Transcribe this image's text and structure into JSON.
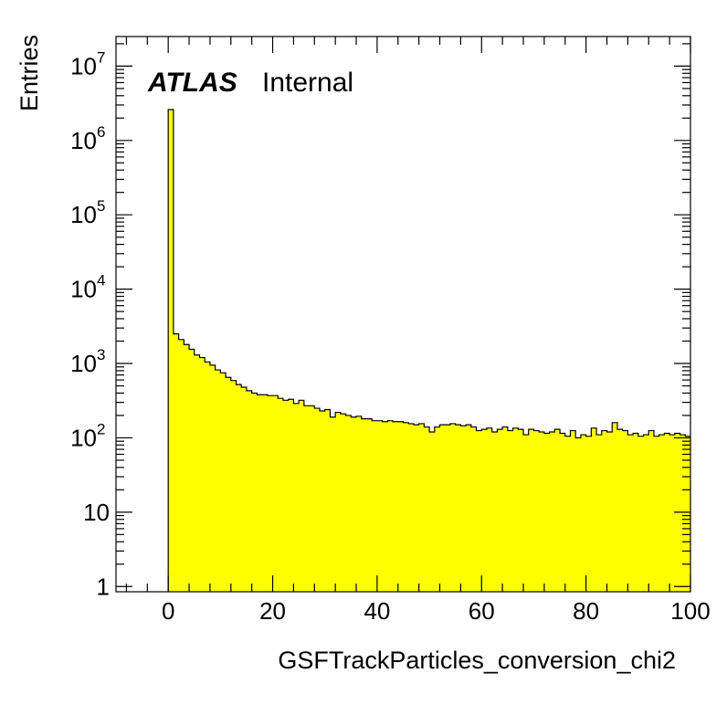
{
  "chart_data": {
    "type": "bar",
    "xlabel": "GSFTrackParticles_conversion_chi2",
    "ylabel": "Entries",
    "xlim": [
      -10,
      100
    ],
    "ylim": [
      0.85,
      25000000
    ],
    "yscale": "log",
    "grid": false,
    "fill_color": "#ffff00",
    "line_color": "#000000",
    "bin_width": 1,
    "x_ticks": [
      "0",
      "20",
      "40",
      "60",
      "80",
      "100"
    ],
    "x_tick_values": [
      0,
      20,
      40,
      60,
      80,
      100
    ],
    "y_ticks": [
      {
        "value": 1,
        "base": "1",
        "exp": ""
      },
      {
        "value": 10,
        "base": "10",
        "exp": ""
      },
      {
        "value": 100,
        "base": "10",
        "exp": "2"
      },
      {
        "value": 1000,
        "base": "10",
        "exp": "3"
      },
      {
        "value": 10000,
        "base": "10",
        "exp": "4"
      },
      {
        "value": 100000,
        "base": "10",
        "exp": "5"
      },
      {
        "value": 1000000,
        "base": "10",
        "exp": "6"
      },
      {
        "value": 10000000,
        "base": "10",
        "exp": "7"
      }
    ],
    "annotation": {
      "atlas": "ATLAS",
      "status": "Internal"
    },
    "x": [
      0,
      1,
      2,
      3,
      4,
      5,
      6,
      7,
      8,
      9,
      10,
      11,
      12,
      13,
      14,
      15,
      16,
      17,
      18,
      19,
      20,
      21,
      22,
      23,
      24,
      25,
      26,
      27,
      28,
      29,
      30,
      31,
      32,
      33,
      34,
      35,
      36,
      37,
      38,
      39,
      40,
      41,
      42,
      43,
      44,
      45,
      46,
      47,
      48,
      49,
      50,
      51,
      52,
      53,
      54,
      55,
      56,
      57,
      58,
      59,
      60,
      61,
      62,
      63,
      64,
      65,
      66,
      67,
      68,
      69,
      70,
      71,
      72,
      73,
      74,
      75,
      76,
      77,
      78,
      79,
      80,
      81,
      82,
      83,
      84,
      85,
      86,
      87,
      88,
      89,
      90,
      91,
      92,
      93,
      94,
      95,
      96,
      97,
      98,
      99
    ],
    "values": [
      2600000,
      2500,
      2100,
      1800,
      1550,
      1300,
      1200,
      1050,
      950,
      820,
      750,
      650,
      590,
      520,
      480,
      430,
      400,
      380,
      380,
      370,
      370,
      340,
      320,
      330,
      290,
      320,
      270,
      270,
      250,
      230,
      240,
      190,
      220,
      210,
      200,
      190,
      195,
      180,
      180,
      170,
      170,
      165,
      170,
      165,
      165,
      160,
      155,
      150,
      155,
      140,
      120,
      140,
      150,
      150,
      155,
      150,
      145,
      150,
      140,
      125,
      130,
      135,
      120,
      130,
      140,
      125,
      135,
      130,
      110,
      130,
      125,
      120,
      115,
      120,
      130,
      115,
      105,
      125,
      100,
      110,
      105,
      135,
      110,
      125,
      120,
      160,
      130,
      125,
      110,
      115,
      105,
      110,
      125,
      105,
      110,
      115,
      110,
      115,
      110,
      105
    ]
  }
}
